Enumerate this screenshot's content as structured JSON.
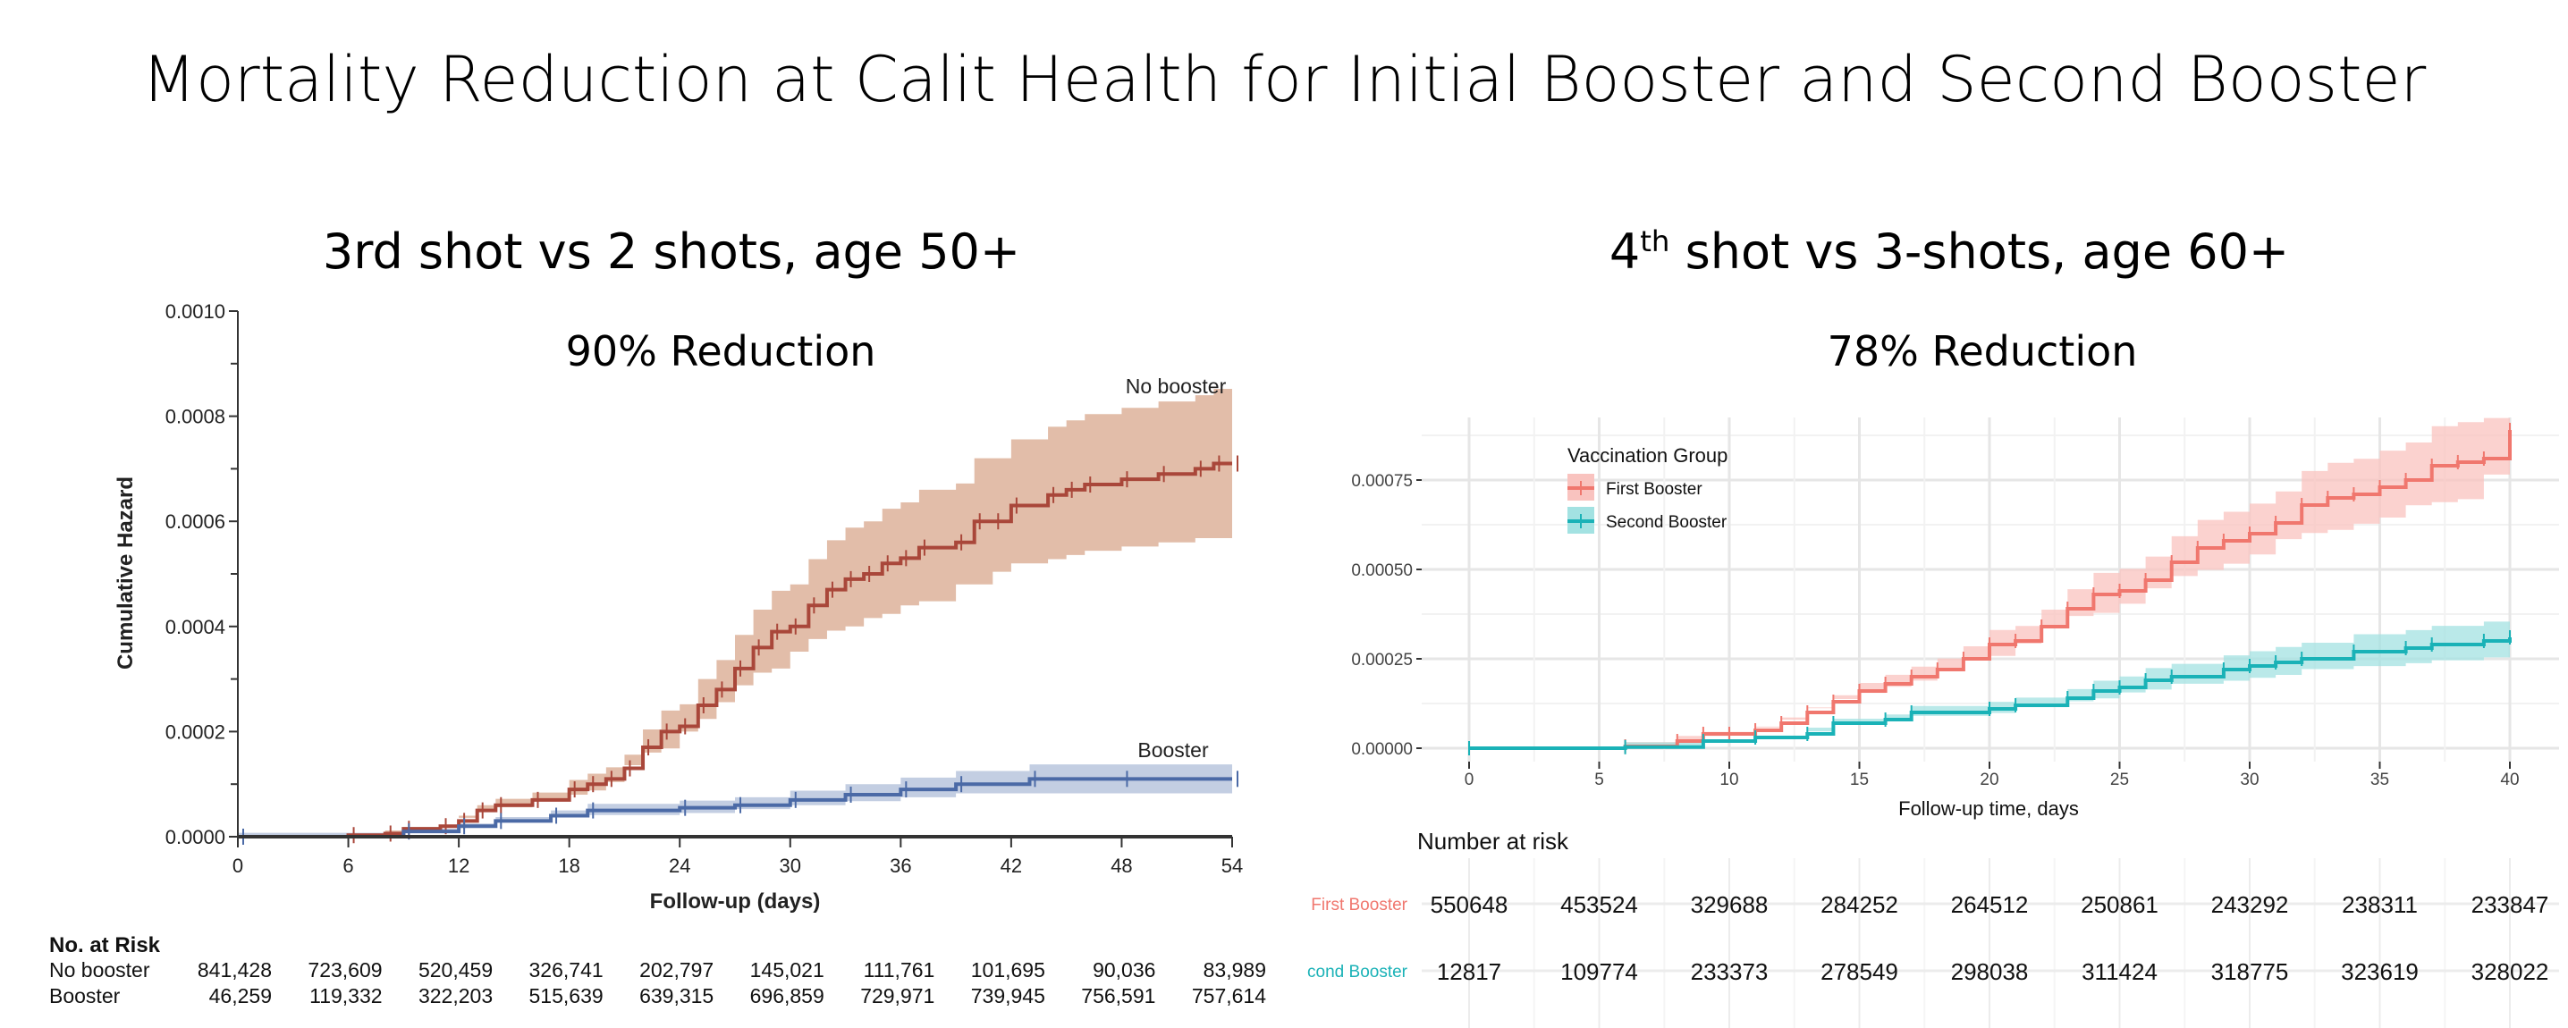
{
  "title": "Mortality Reduction at Calit Health for Initial Booster and Second Booster",
  "left_panel": {
    "subtitle": "3rd shot vs 2 shots, age 50+",
    "reduction": "90%  Reduction"
  },
  "right_panel": {
    "subtitle_ordinal": "4",
    "subtitle_sup": "th",
    "subtitle_rest": " shot vs 3-shots, age 60+",
    "reduction": "78% Reduction"
  },
  "chart_data": [
    {
      "type": "line",
      "step": true,
      "xlabel": "Follow-up (days)",
      "ylabel": "Cumulative Hazard",
      "xlim": [
        0,
        54
      ],
      "ylim": [
        0,
        0.001
      ],
      "xticks": [
        "0",
        "6",
        "12",
        "18",
        "24",
        "30",
        "36",
        "42",
        "48",
        "54"
      ],
      "xtick_values": [
        0,
        6,
        12,
        18,
        24,
        30,
        36,
        42,
        48,
        54
      ],
      "yticks": [
        "0.0000",
        "0.0002",
        "0.0004",
        "0.0006",
        "0.0008",
        "0.0010"
      ],
      "ytick_values": [
        0,
        0.0002,
        0.0004,
        0.0006,
        0.0008,
        0.001
      ],
      "colors": {
        "No booster": "#a9473a",
        "No booster band": "#ddb29a",
        "Booster": "#4b6aa6",
        "Booster band": "#b9c5dd"
      },
      "series": [
        {
          "name": "No booster",
          "label": "No booster",
          "ci_relative": 0.2,
          "x": [
            0,
            6,
            8,
            9,
            11,
            12,
            13,
            14,
            16,
            18,
            19,
            20,
            21,
            22,
            23,
            24,
            25,
            26,
            27,
            28,
            29,
            30,
            31,
            32,
            33,
            34,
            35,
            36,
            37,
            39,
            40,
            41,
            42,
            44,
            45,
            46,
            48,
            50,
            52,
            53,
            54
          ],
          "y": [
            0,
            3e-06,
            6e-06,
            1.5e-05,
            2e-05,
            3e-05,
            5e-05,
            6e-05,
            7e-05,
            9e-05,
            0.0001,
            0.00011,
            0.00013,
            0.00017,
            0.0002,
            0.00021,
            0.00025,
            0.00028,
            0.00032,
            0.00036,
            0.00039,
            0.0004,
            0.00044,
            0.00047,
            0.00049,
            0.0005,
            0.00052,
            0.00053,
            0.00055,
            0.00056,
            0.0006,
            0.0006,
            0.00063,
            0.00065,
            0.00066,
            0.00067,
            0.00068,
            0.00069,
            0.0007,
            0.00071,
            0.00071
          ]
        },
        {
          "name": "Booster",
          "label": "Booster",
          "ci_relative": 0.25,
          "x": [
            0,
            9,
            12,
            14,
            17,
            19,
            24,
            27,
            30,
            33,
            36,
            39,
            43,
            48,
            54
          ],
          "y": [
            0,
            1e-05,
            2e-05,
            3e-05,
            4e-05,
            5e-05,
            5.5e-05,
            6e-05,
            7e-05,
            8e-05,
            9e-05,
            0.0001,
            0.00011,
            0.00011,
            0.00011
          ]
        }
      ],
      "risk_table": {
        "title": "No. at Risk",
        "rows": [
          {
            "label": "No booster",
            "values": [
              "841,428",
              "723,609",
              "520,459",
              "326,741",
              "202,797",
              "145,021",
              "111,761",
              "101,695",
              "90,036",
              "83,989"
            ]
          },
          {
            "label": "Booster",
            "values": [
              "46,259",
              "119,332",
              "322,203",
              "515,639",
              "639,315",
              "696,859",
              "729,971",
              "739,945",
              "756,591",
              "757,614"
            ]
          }
        ]
      }
    },
    {
      "type": "line",
      "step": true,
      "xlabel": "Follow-up time, days",
      "ylabel": "",
      "xlim": [
        0,
        40
      ],
      "ylim": [
        0,
        0.00089
      ],
      "xticks": [
        "0",
        "5",
        "10",
        "15",
        "20",
        "25",
        "30",
        "35",
        "40"
      ],
      "xtick_values": [
        0,
        5,
        10,
        15,
        20,
        25,
        30,
        35,
        40
      ],
      "yticks": [
        "0.00000",
        "0.00025",
        "0.00050",
        "0.00075"
      ],
      "ytick_values": [
        0,
        0.00025,
        0.0005,
        0.00075
      ],
      "legend": {
        "title": "Vaccination Group",
        "position": "top-left"
      },
      "colors": {
        "First Booster": "#f0776e",
        "First Booster band": "#f9c3bf",
        "Second Booster": "#1ab2b7",
        "Second Booster band": "#a3e2e2"
      },
      "series": [
        {
          "name": "First Booster",
          "label": "First Booster",
          "ci_relative": 0.14,
          "x": [
            0,
            6,
            8,
            9,
            10,
            11,
            12,
            13,
            14,
            15,
            16,
            17,
            18,
            19,
            20,
            21,
            22,
            23,
            24,
            25,
            26,
            27,
            28,
            29,
            30,
            31,
            32,
            33,
            34,
            35,
            36,
            37,
            38,
            39,
            40
          ],
          "y": [
            0,
            5e-06,
            2e-05,
            4e-05,
            4e-05,
            5e-05,
            7e-05,
            0.0001,
            0.00013,
            0.00016,
            0.00018,
            0.0002,
            0.00022,
            0.00025,
            0.00029,
            0.0003,
            0.00034,
            0.00039,
            0.00043,
            0.00044,
            0.00047,
            0.00052,
            0.00056,
            0.00058,
            0.0006,
            0.00063,
            0.00068,
            0.0007,
            0.00071,
            0.00073,
            0.00075,
            0.00079,
            0.0008,
            0.00081,
            0.00089
          ]
        },
        {
          "name": "Second Booster",
          "label": "Second Booster",
          "ci_relative": 0.18,
          "x": [
            0,
            6,
            9,
            11,
            13,
            14,
            16,
            17,
            20,
            21,
            23,
            24,
            25,
            26,
            27,
            29,
            30,
            31,
            32,
            34,
            36,
            37,
            39,
            40
          ],
          "y": [
            0,
            3e-06,
            2e-05,
            3e-05,
            4e-05,
            7e-05,
            8e-05,
            0.0001,
            0.00011,
            0.00012,
            0.00014,
            0.00016,
            0.00017,
            0.00019,
            0.0002,
            0.00022,
            0.00023,
            0.00024,
            0.00025,
            0.00027,
            0.00028,
            0.00029,
            0.0003,
            0.00031
          ]
        }
      ],
      "risk_table": {
        "title": "Number at risk",
        "rows": [
          {
            "label": "First Booster",
            "values": [
              "550648",
              "453524",
              "329688",
              "284252",
              "264512",
              "250861",
              "243292",
              "238311",
              "233847"
            ]
          },
          {
            "label": "Second Booster",
            "values": [
              "12817",
              "109774",
              "233373",
              "278549",
              "298038",
              "311424",
              "318775",
              "323619",
              "328022"
            ]
          }
        ]
      }
    }
  ]
}
